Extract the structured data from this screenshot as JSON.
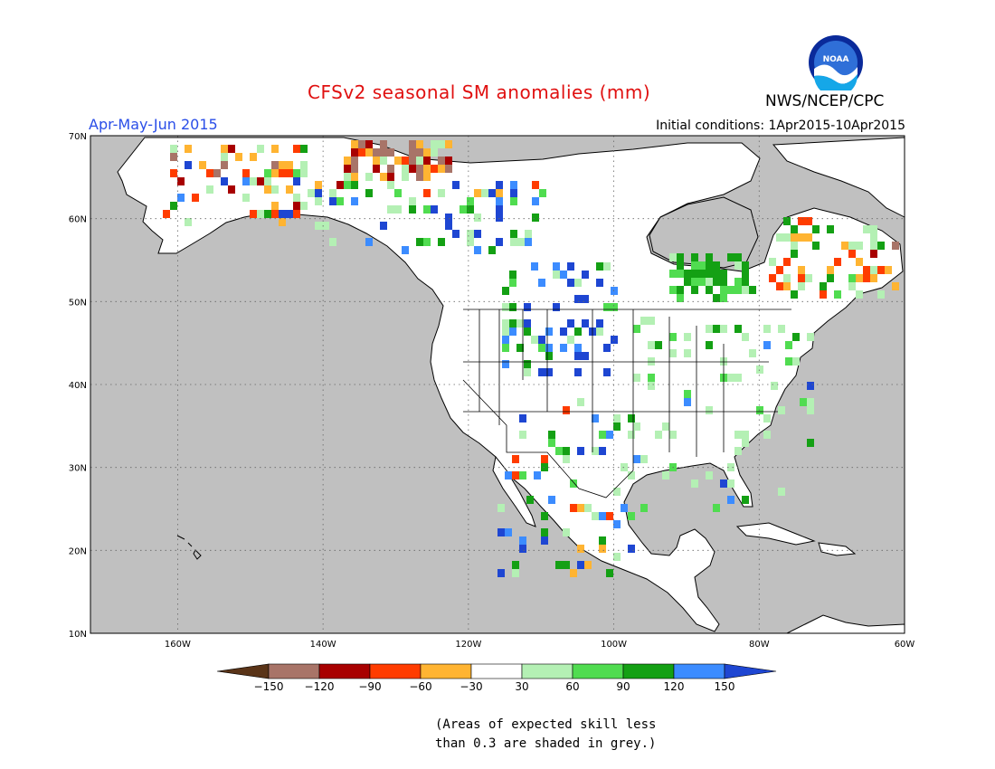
{
  "header": {
    "title": "CFSv2 seasonal SM anomalies (mm)",
    "org": "NWS/NCEP/CPC",
    "logo_text": "NOAA"
  },
  "map": {
    "period": "Apr-May-Jun 2015",
    "initial_conditions": "Initial conditions: 1Apr2015-10Apr2015",
    "lon_labels": [
      "160W",
      "140W",
      "120W",
      "100W",
      "80W",
      "60W"
    ],
    "lat_labels": [
      "70N",
      "60N",
      "50N",
      "40N",
      "30N",
      "20N",
      "10N"
    ],
    "lon_range": [
      -172,
      -60
    ],
    "lat_range": [
      10,
      70
    ],
    "ocean_color": "#c0c0c0",
    "land_color": "#ffffff"
  },
  "legend": {
    "tick_labels": [
      "-150",
      "-120",
      "-90",
      "-60",
      "-30",
      "30",
      "60",
      "90",
      "120",
      "150"
    ],
    "colors": [
      "#5a3418",
      "#a87468",
      "#a80000",
      "#ff3c00",
      "#ffb432",
      "#ffffff",
      "#b4f0b4",
      "#50dc50",
      "#14a014",
      "#3c8cff",
      "#1e46d2"
    ]
  },
  "note": {
    "line1": "(Areas of expected skill less",
    "line2": "than 0.3 are shaded in grey.)"
  }
}
